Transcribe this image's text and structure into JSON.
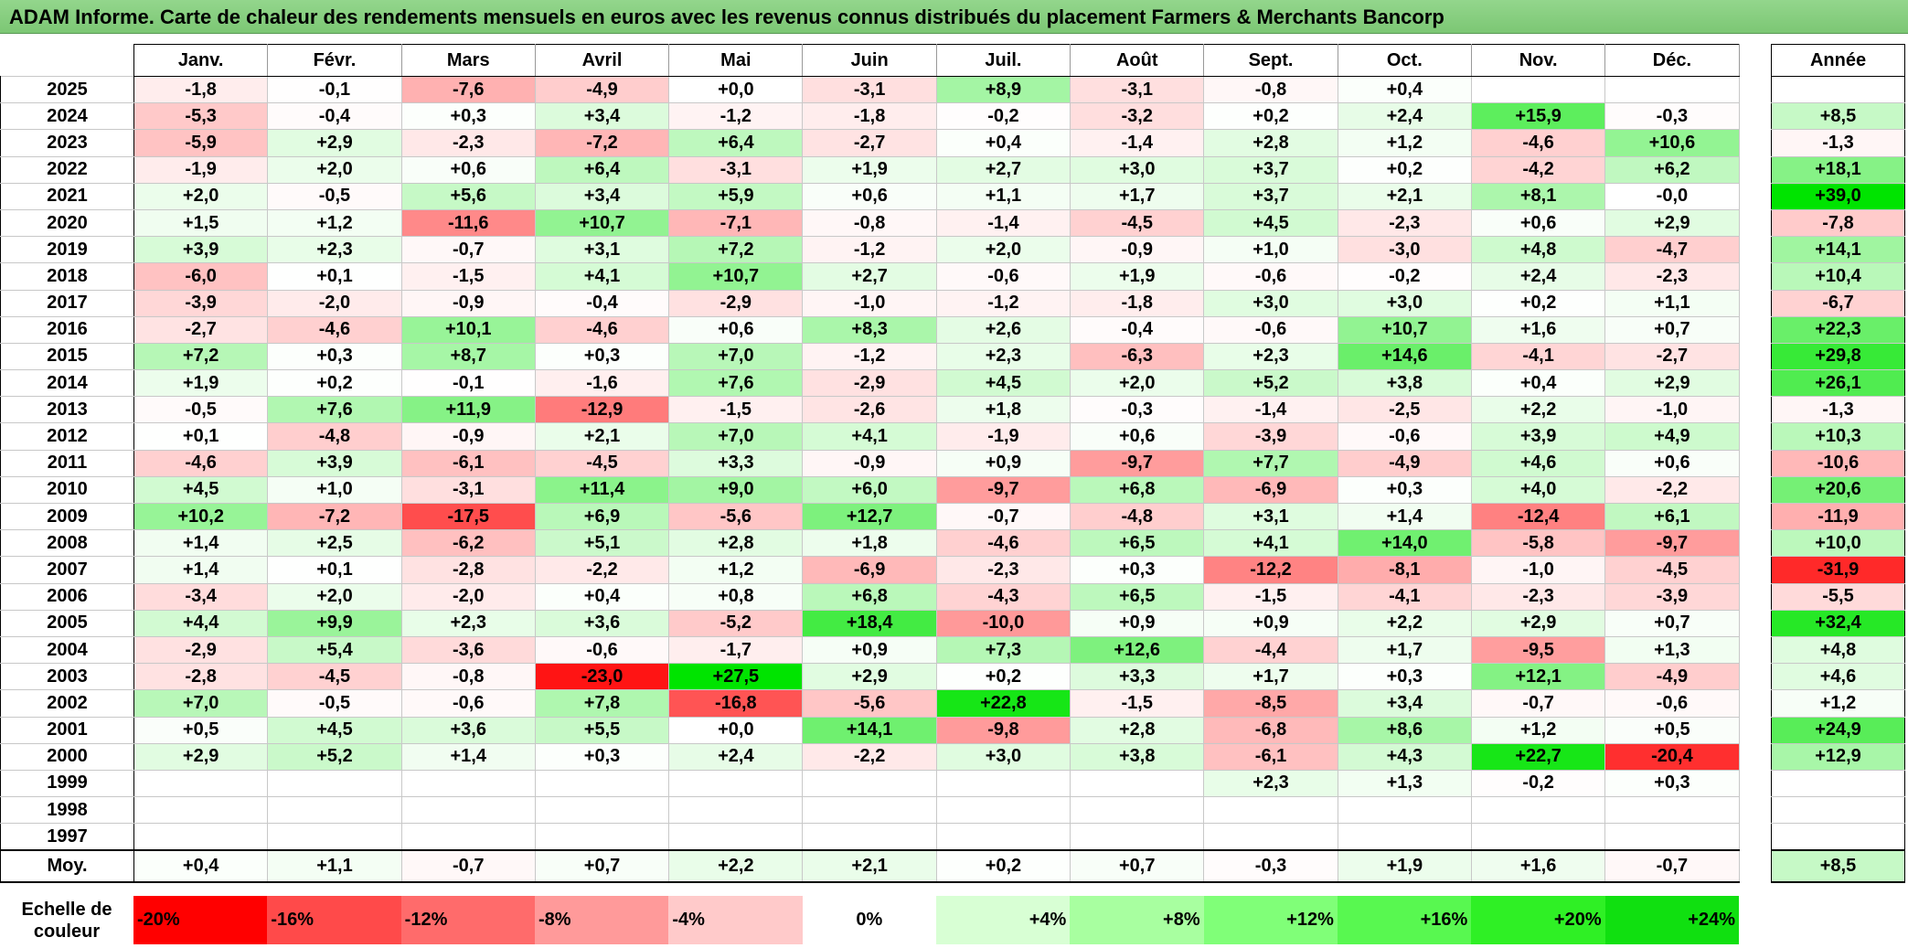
{
  "title": "ADAM Informe. Carte de chaleur des rendements mensuels en euros avec les revenus connus distribués du placement Farmers & Merchants Bancorp",
  "months": [
    "Janv.",
    "Févr.",
    "Mars",
    "Avril",
    "Mai",
    "Juin",
    "Juil.",
    "Août",
    "Sept.",
    "Oct.",
    "Nov.",
    "Déc."
  ],
  "year_header": "Année",
  "avg_label": "Moy.",
  "scale_label": "Echelle de couleur",
  "scale_steps": [
    "-20%",
    "-16%",
    "-12%",
    "-8%",
    "-4%",
    "0%",
    "+4%",
    "+8%",
    "+12%",
    "+16%",
    "+20%",
    "+24%"
  ],
  "chart_data": {
    "type": "heatmap",
    "title": "ADAM Informe. Carte de chaleur des rendements mensuels en euros avec les revenus connus distribués du placement Farmers & Merchants Bancorp",
    "columns": [
      "Janv.",
      "Févr.",
      "Mars",
      "Avril",
      "Mai",
      "Juin",
      "Juil.",
      "Août",
      "Sept.",
      "Oct.",
      "Nov.",
      "Déc."
    ],
    "rows": [
      {
        "year": "2025",
        "values": [
          "-1,8",
          "-0,1",
          "-7,6",
          "-4,9",
          "+0,0",
          "-3,1",
          "+8,9",
          "-3,1",
          "-0,8",
          "+0,4",
          "",
          ""
        ],
        "annual": ""
      },
      {
        "year": "2024",
        "values": [
          "-5,3",
          "-0,4",
          "+0,3",
          "+3,4",
          "-1,2",
          "-1,8",
          "-0,2",
          "-3,2",
          "+0,2",
          "+2,4",
          "+15,9",
          "-0,3"
        ],
        "annual": "+8,5"
      },
      {
        "year": "2023",
        "values": [
          "-5,9",
          "+2,9",
          "-2,3",
          "-7,2",
          "+6,4",
          "-2,7",
          "+0,4",
          "-1,4",
          "+2,8",
          "+1,2",
          "-4,6",
          "+10,6"
        ],
        "annual": "-1,3"
      },
      {
        "year": "2022",
        "values": [
          "-1,9",
          "+2,0",
          "+0,6",
          "+6,4",
          "-3,1",
          "+1,9",
          "+2,7",
          "+3,0",
          "+3,7",
          "+0,2",
          "-4,2",
          "+6,2"
        ],
        "annual": "+18,1"
      },
      {
        "year": "2021",
        "values": [
          "+2,0",
          "-0,5",
          "+5,6",
          "+3,4",
          "+5,9",
          "+0,6",
          "+1,1",
          "+1,7",
          "+3,7",
          "+2,1",
          "+8,1",
          "-0,0"
        ],
        "annual": "+39,0"
      },
      {
        "year": "2020",
        "values": [
          "+1,5",
          "+1,2",
          "-11,6",
          "+10,7",
          "-7,1",
          "-0,8",
          "-1,4",
          "-4,5",
          "+4,5",
          "-2,3",
          "+0,6",
          "+2,9"
        ],
        "annual": "-7,8"
      },
      {
        "year": "2019",
        "values": [
          "+3,9",
          "+2,3",
          "-0,7",
          "+3,1",
          "+7,2",
          "-1,2",
          "+2,0",
          "-0,9",
          "+1,0",
          "-3,0",
          "+4,8",
          "-4,7"
        ],
        "annual": "+14,1"
      },
      {
        "year": "2018",
        "values": [
          "-6,0",
          "+0,1",
          "-1,5",
          "+4,1",
          "+10,7",
          "+2,7",
          "-0,6",
          "+1,9",
          "-0,6",
          "-0,2",
          "+2,4",
          "-2,3"
        ],
        "annual": "+10,4"
      },
      {
        "year": "2017",
        "values": [
          "-3,9",
          "-2,0",
          "-0,9",
          "-0,4",
          "-2,9",
          "-1,0",
          "-1,2",
          "-1,8",
          "+3,0",
          "+3,0",
          "+0,2",
          "+1,1"
        ],
        "annual": "-6,7"
      },
      {
        "year": "2016",
        "values": [
          "-2,7",
          "-4,6",
          "+10,1",
          "-4,6",
          "+0,6",
          "+8,3",
          "+2,6",
          "-0,4",
          "-0,6",
          "+10,7",
          "+1,6",
          "+0,7"
        ],
        "annual": "+22,3"
      },
      {
        "year": "2015",
        "values": [
          "+7,2",
          "+0,3",
          "+8,7",
          "+0,3",
          "+7,0",
          "-1,2",
          "+2,3",
          "-6,3",
          "+2,3",
          "+14,6",
          "-4,1",
          "-2,7"
        ],
        "annual": "+29,8"
      },
      {
        "year": "2014",
        "values": [
          "+1,9",
          "+0,2",
          "-0,1",
          "-1,6",
          "+7,6",
          "-2,9",
          "+4,5",
          "+2,0",
          "+5,2",
          "+3,8",
          "+0,4",
          "+2,9"
        ],
        "annual": "+26,1"
      },
      {
        "year": "2013",
        "values": [
          "-0,5",
          "+7,6",
          "+11,9",
          "-12,9",
          "-1,5",
          "-2,6",
          "+1,8",
          "-0,3",
          "-1,4",
          "-2,5",
          "+2,2",
          "-1,0"
        ],
        "annual": "-1,3"
      },
      {
        "year": "2012",
        "values": [
          "+0,1",
          "-4,8",
          "-0,9",
          "+2,1",
          "+7,0",
          "+4,1",
          "-1,9",
          "+0,6",
          "-3,9",
          "-0,6",
          "+3,9",
          "+4,9"
        ],
        "annual": "+10,3"
      },
      {
        "year": "2011",
        "values": [
          "-4,6",
          "+3,9",
          "-6,1",
          "-4,5",
          "+3,3",
          "-0,9",
          "+0,9",
          "-9,7",
          "+7,7",
          "-4,9",
          "+4,6",
          "+0,6"
        ],
        "annual": "-10,6"
      },
      {
        "year": "2010",
        "values": [
          "+4,5",
          "+1,0",
          "-3,1",
          "+11,4",
          "+9,0",
          "+6,0",
          "-9,7",
          "+6,8",
          "-6,9",
          "+0,3",
          "+4,0",
          "-2,2"
        ],
        "annual": "+20,6"
      },
      {
        "year": "2009",
        "values": [
          "+10,2",
          "-7,2",
          "-17,5",
          "+6,9",
          "-5,6",
          "+12,7",
          "-0,7",
          "-4,8",
          "+3,1",
          "+1,4",
          "-12,4",
          "+6,1"
        ],
        "annual": "-11,9"
      },
      {
        "year": "2008",
        "values": [
          "+1,4",
          "+2,5",
          "-6,2",
          "+5,1",
          "+2,8",
          "+1,8",
          "-4,6",
          "+6,5",
          "+4,1",
          "+14,0",
          "-5,8",
          "-9,7"
        ],
        "annual": "+10,0"
      },
      {
        "year": "2007",
        "values": [
          "+1,4",
          "+0,1",
          "-2,8",
          "-2,2",
          "+1,2",
          "-6,9",
          "-2,3",
          "+0,3",
          "-12,2",
          "-8,1",
          "-1,0",
          "-4,5"
        ],
        "annual": "-31,9"
      },
      {
        "year": "2006",
        "values": [
          "-3,4",
          "+2,0",
          "-2,0",
          "+0,4",
          "+0,8",
          "+6,8",
          "-4,3",
          "+6,5",
          "-1,5",
          "-4,1",
          "-2,3",
          "-3,9"
        ],
        "annual": "-5,5"
      },
      {
        "year": "2005",
        "values": [
          "+4,4",
          "+9,9",
          "+2,3",
          "+3,6",
          "-5,2",
          "+18,4",
          "-10,0",
          "+0,9",
          "+0,9",
          "+2,2",
          "+2,9",
          "+0,7"
        ],
        "annual": "+32,4"
      },
      {
        "year": "2004",
        "values": [
          "-2,9",
          "+5,4",
          "-3,6",
          "-0,6",
          "-1,7",
          "+0,9",
          "+7,3",
          "+12,6",
          "-4,4",
          "+1,7",
          "-9,5",
          "+1,3"
        ],
        "annual": "+4,8"
      },
      {
        "year": "2003",
        "values": [
          "-2,8",
          "-4,5",
          "-0,8",
          "-23,0",
          "+27,5",
          "+2,9",
          "+0,2",
          "+3,3",
          "+1,7",
          "+0,3",
          "+12,1",
          "-4,9"
        ],
        "annual": "+4,6"
      },
      {
        "year": "2002",
        "values": [
          "+7,0",
          "-0,5",
          "-0,6",
          "+7,8",
          "-16,8",
          "-5,6",
          "+22,8",
          "-1,5",
          "-8,5",
          "+3,4",
          "-0,7",
          "-0,6"
        ],
        "annual": "+1,2"
      },
      {
        "year": "2001",
        "values": [
          "+0,5",
          "+4,5",
          "+3,6",
          "+5,5",
          "+0,0",
          "+14,1",
          "-9,8",
          "+2,8",
          "-6,8",
          "+8,6",
          "+1,2",
          "+0,5"
        ],
        "annual": "+24,9"
      },
      {
        "year": "2000",
        "values": [
          "+2,9",
          "+5,2",
          "+1,4",
          "+0,3",
          "+2,4",
          "-2,2",
          "+3,0",
          "+3,8",
          "-6,1",
          "+4,3",
          "+22,7",
          "-20,4"
        ],
        "annual": "+12,9"
      },
      {
        "year": "1999",
        "values": [
          "",
          "",
          "",
          "",
          "",
          "",
          "",
          "",
          "+2,3",
          "+1,3",
          "-0,2",
          "+0,3"
        ],
        "annual": ""
      },
      {
        "year": "1998",
        "values": [
          "",
          "",
          "",
          "",
          "",
          "",
          "",
          "",
          "",
          "",
          "",
          ""
        ],
        "annual": ""
      },
      {
        "year": "1997",
        "values": [
          "",
          "",
          "",
          "",
          "",
          "",
          "",
          "",
          "",
          "",
          "",
          ""
        ],
        "annual": ""
      }
    ],
    "average": {
      "label": "Moy.",
      "values": [
        "+0,4",
        "+1,1",
        "-0,7",
        "+0,7",
        "+2,2",
        "+2,1",
        "+0,2",
        "+0,7",
        "-0,3",
        "+1,9",
        "+1,6",
        "-0,7"
      ],
      "annual": "+8,5"
    },
    "color_scale": {
      "label": "Echelle de couleur",
      "steps": [
        "-20%",
        "-16%",
        "-12%",
        "-8%",
        "-4%",
        "0%",
        "+4%",
        "+8%",
        "+12%",
        "+16%",
        "+20%",
        "+24%"
      ],
      "negative_color": "#ff0000",
      "neutral_color": "#ffffff",
      "positive_color": "#00e000"
    }
  }
}
